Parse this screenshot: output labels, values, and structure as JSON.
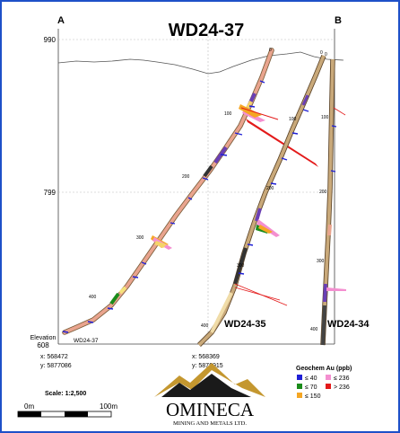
{
  "section": {
    "title": "WD24-37",
    "end_a": "A",
    "end_b": "B",
    "elevation_label": "Elevation",
    "elevation_ticks": [
      "990",
      "799",
      "608"
    ]
  },
  "drill_holes": [
    {
      "name": "WD24-37",
      "depth_marks": [
        "0",
        "100",
        "200",
        "300",
        "400"
      ],
      "collar_label": "0"
    },
    {
      "name": "WD24-35",
      "depth_marks": [
        "100",
        "200",
        "300",
        "400"
      ],
      "collar_label": "0"
    },
    {
      "name": "WD24-34",
      "depth_marks": [
        "100",
        "200",
        "300",
        "400"
      ],
      "collar_label": "0"
    }
  ],
  "coordinates": {
    "left": {
      "x": "x: 568472",
      "y": "y: 5877086"
    },
    "right": {
      "x": "x: 568369",
      "y": "y: 5876915"
    }
  },
  "scale": {
    "label": "Scale: 1:2,500",
    "start": "0m",
    "end": "100m"
  },
  "legend": {
    "title": "Geochem Au (ppb)",
    "items": [
      {
        "label": "≤ 40",
        "color": "#1f1fd6"
      },
      {
        "label": "≤ 236",
        "color": "#f48fd0"
      },
      {
        "label": "≤ 70",
        "color": "#1a8c1a"
      },
      {
        "label": "> 236",
        "color": "#e31a1a"
      },
      {
        "label": "≤ 150",
        "color": "#f5a623"
      }
    ]
  },
  "logo": {
    "name": "OMINECA",
    "subtitle": "MINING AND METALS LTD."
  },
  "colors": {
    "frame_border": "#1e50c8",
    "trace_tan": "#c9a97a",
    "trace_salmon": "#e9a48e",
    "trace_dark": "#3a3a3a",
    "trace_purple": "#6a3fb5",
    "gold": "#c4972f"
  }
}
